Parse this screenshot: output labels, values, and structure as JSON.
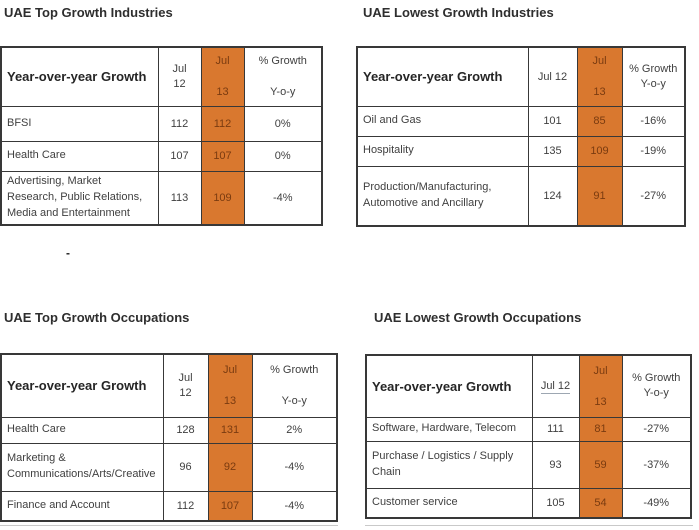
{
  "colors": {
    "accent_orange": "#D9782F",
    "orange_text": "#7A3B10",
    "border": "#383838",
    "text": "#3F3F3F",
    "title": "#2E2E2E"
  },
  "misc": {
    "dash": "-"
  },
  "tables": {
    "top_left": {
      "title": "UAE Top Growth Industries",
      "header": {
        "label": "Year-over-year Growth",
        "jul12_lines": [
          "Jul",
          "12"
        ],
        "jul13_lines": [
          "Jul",
          "13"
        ],
        "pct_lines": [
          "% Growth",
          "Y-o-y"
        ]
      },
      "rows": [
        {
          "label": "BFSI",
          "jul12": "112",
          "jul13": "112",
          "pct": "0%"
        },
        {
          "label": "Health Care",
          "jul12": "107",
          "jul13": "107",
          "pct": "0%"
        },
        {
          "label": "Advertising, Market Research, Public Relations, Media and Entertainment",
          "jul12": "113",
          "jul13": "109",
          "pct": "-4%"
        }
      ]
    },
    "top_right": {
      "title": "UAE Lowest Growth Industries",
      "header": {
        "label": "Year-over-year Growth",
        "jul12_lines": [
          "Jul 12"
        ],
        "jul13_lines": [
          "Jul",
          "13"
        ],
        "pct_lines": [
          "% Growth",
          "Y-o-y"
        ]
      },
      "rows": [
        {
          "label": "Oil and Gas",
          "jul12": "101",
          "jul13": "85",
          "pct": "-16%"
        },
        {
          "label": "Hospitality",
          "jul12": "135",
          "jul13": "109",
          "pct": "-19%"
        },
        {
          "label": "Production/Manufacturing, Automotive and Ancillary",
          "jul12": "124",
          "jul13": "91",
          "pct": "-27%"
        }
      ]
    },
    "bottom_left": {
      "title": "UAE Top Growth Occupations",
      "header": {
        "label": "Year-over-year Growth",
        "jul12_lines": [
          "Jul",
          "12"
        ],
        "jul13_lines": [
          "Jul",
          "13"
        ],
        "pct_lines": [
          "% Growth",
          "Y-o-y"
        ]
      },
      "rows": [
        {
          "label": "Health Care",
          "jul12": "128",
          "jul13": "131",
          "pct": "2%"
        },
        {
          "label": "Marketing & Communications/Arts/Creative",
          "jul12": "96",
          "jul13": "92",
          "pct": "-4%"
        },
        {
          "label": "Finance and Account",
          "jul12": "112",
          "jul13": "107",
          "pct": "-4%"
        }
      ]
    },
    "bottom_right": {
      "title": "UAE Lowest Growth Occupations",
      "header": {
        "label": "Year-over-year Growth",
        "jul12_lines": [
          "Jul 12"
        ],
        "jul13_lines": [
          "Jul",
          "13"
        ],
        "pct_lines": [
          "% Growth",
          "Y-o-y"
        ]
      },
      "rows": [
        {
          "label": "Software, Hardware, Telecom",
          "jul12": "111",
          "jul13": "81",
          "pct": "-27%"
        },
        {
          "label": "Purchase / Logistics / Supply Chain",
          "jul12": "93",
          "jul13": "59",
          "pct": "-37%"
        },
        {
          "label": "Customer service",
          "jul12": "105",
          "jul13": "54",
          "pct": "-49%"
        }
      ]
    }
  }
}
